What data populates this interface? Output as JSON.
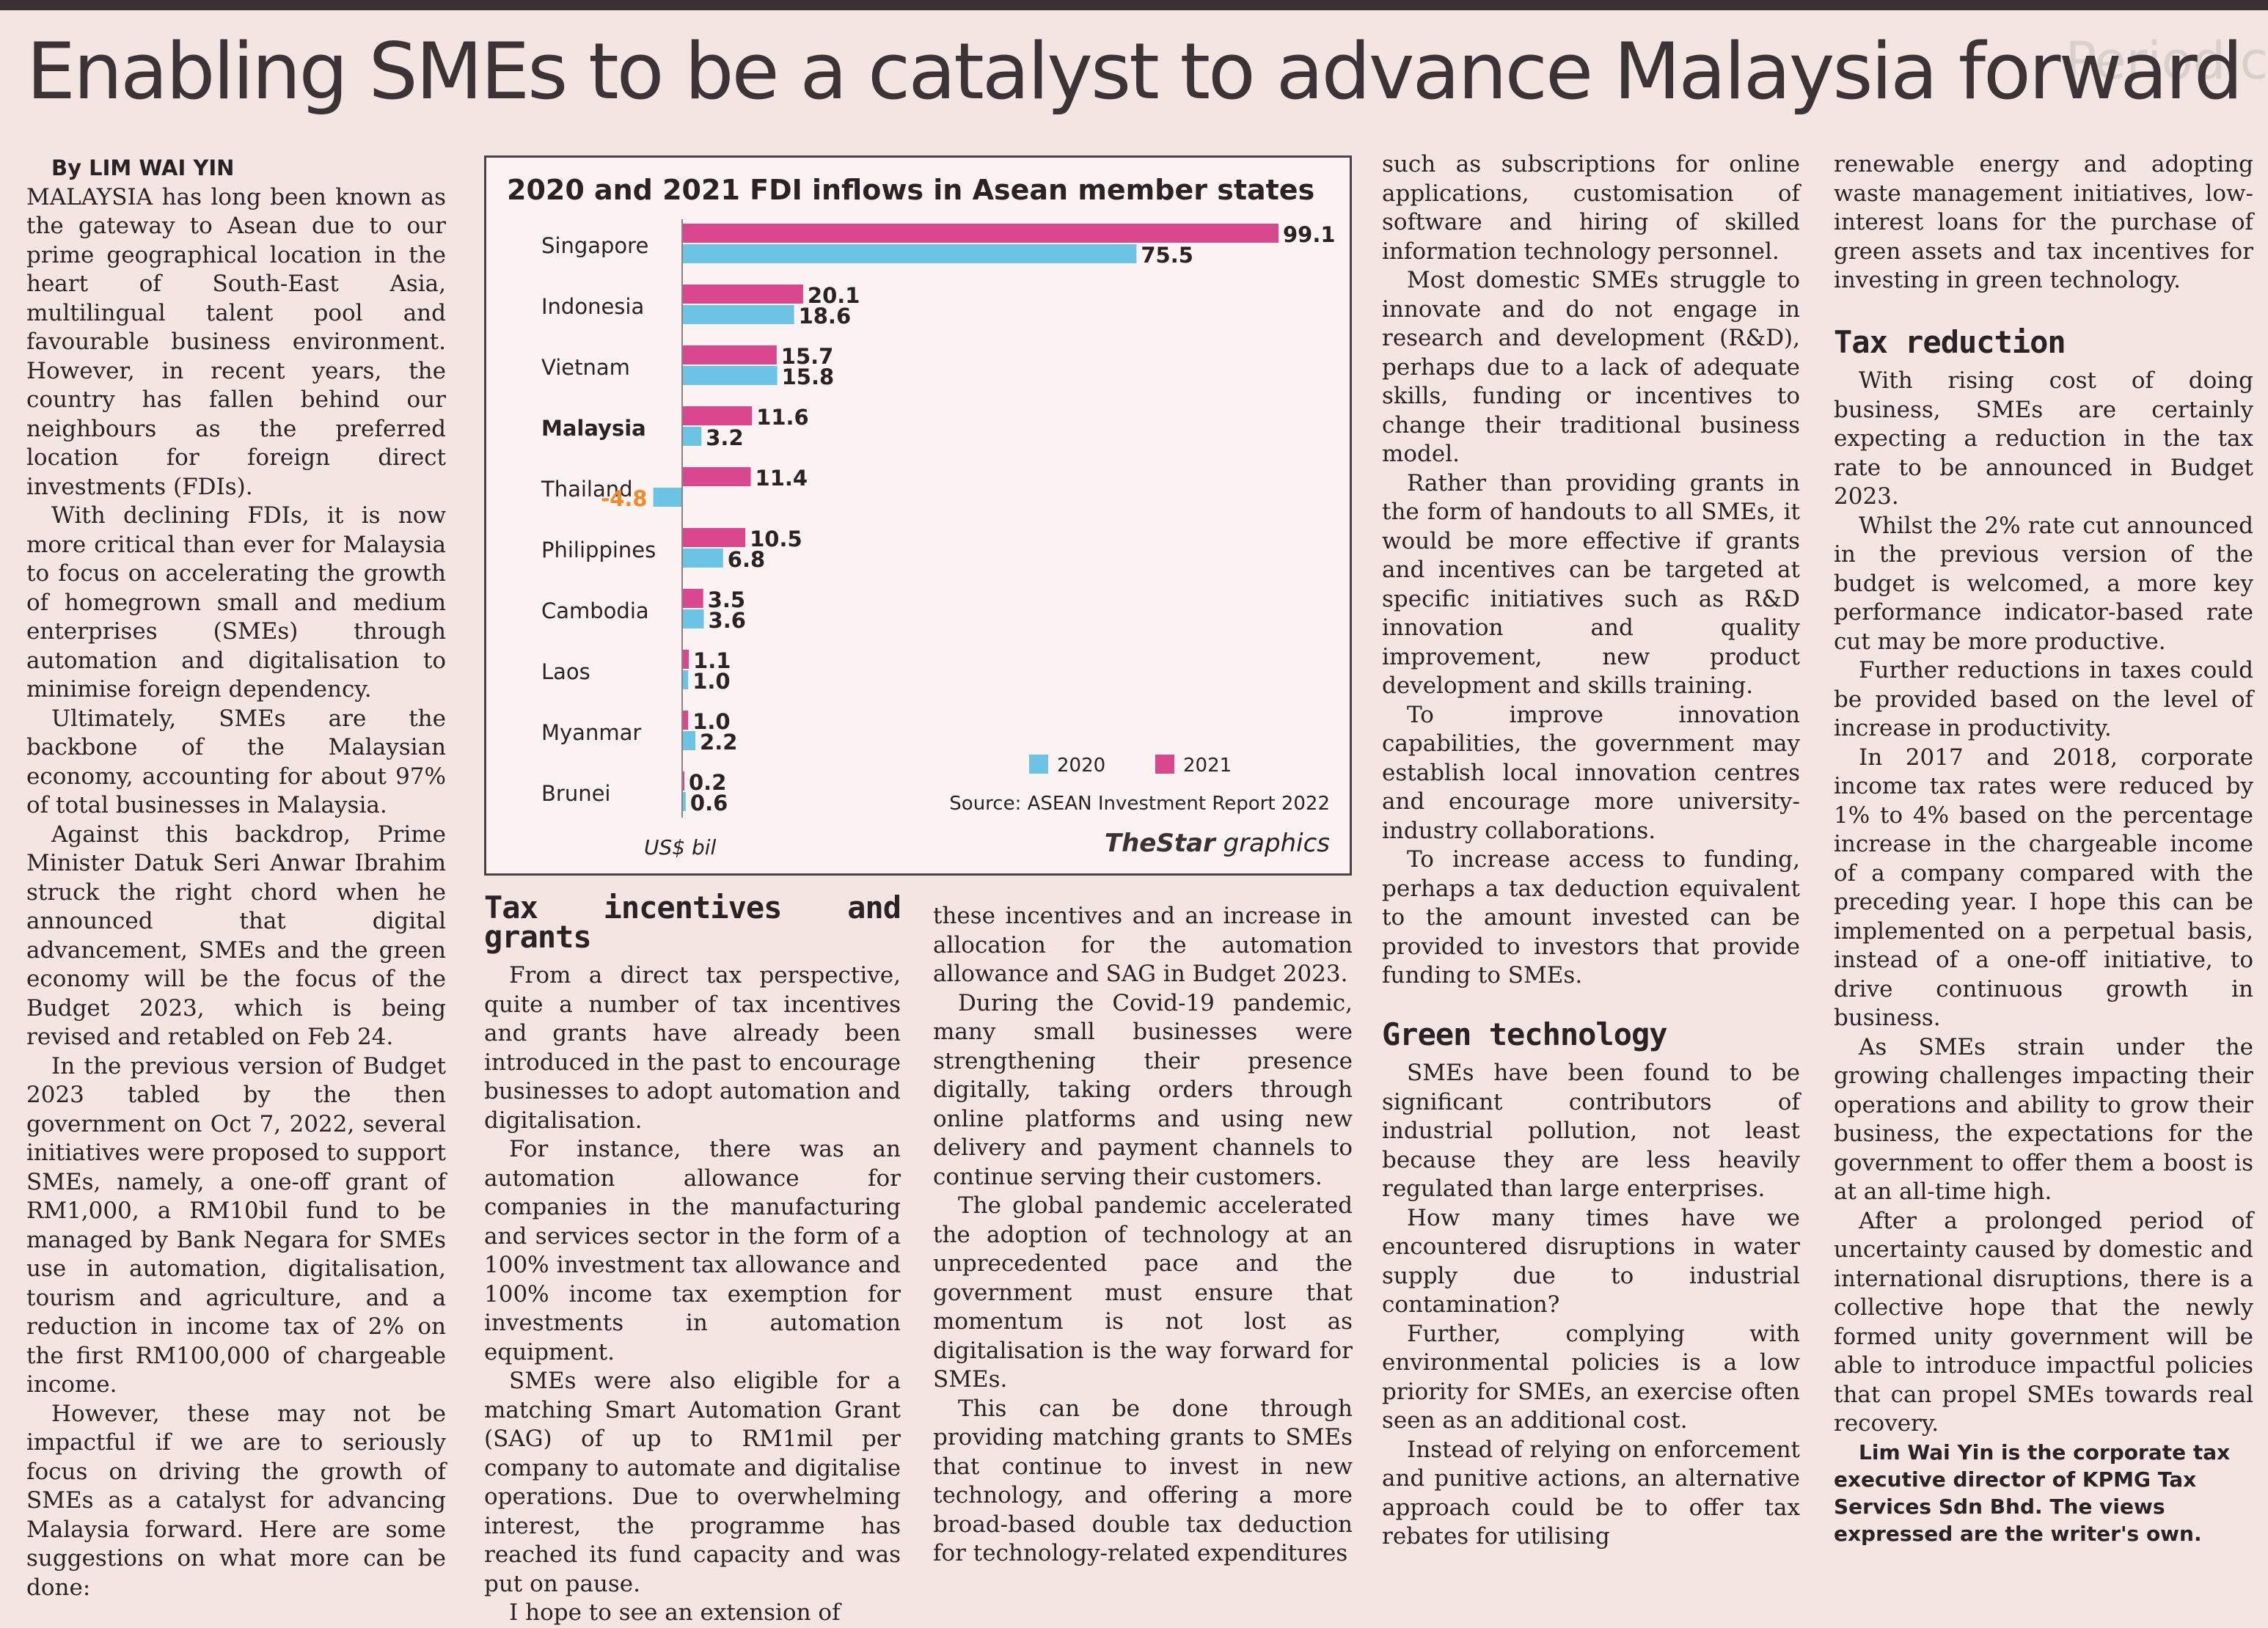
{
  "headline": "Enabling SMEs to be a catalyst to advance Malaysia forward",
  "side_ghost_text": "Periodic",
  "byline": "By LIM WAI YIN",
  "col1": [
    "MALAYSIA has long been known as the gateway to Asean due to our prime geographical location in the heart of South-East Asia, multilingual talent pool and favourable business environment. However, in recent years, the country has fallen behind our neighbours as the preferred location for foreign direct investments (FDIs).",
    "With declining FDIs, it is now more critical than ever for Malaysia to focus on accelerating the growth of homegrown small and medium enterprises (SMEs) through automation and digitalisation to minimise foreign dependency.",
    "Ultimately, SMEs are the backbone of the Malaysian economy, accounting for about 97% of total businesses in Malaysia.",
    "Against this backdrop, Prime Minister Datuk Seri Anwar Ibrahim struck the right chord when he announced that digital advancement, SMEs and the green economy will be the focus of the Budget 2023, which is being revised and retabled on Feb 24.",
    "In the previous version of Budget 2023 tabled by the then government on Oct 7, 2022, several initiatives were proposed to support SMEs, namely, a one-off grant of RM1,000, a RM10bil fund to be managed by Bank Negara for SMEs use in automation, digitalisation, tourism and agriculture, and a reduction in income tax of 2% on the first RM100,000 of chargeable income.",
    "However, these may not be impactful if we are to seriously focus on driving the growth of SMEs as a catalyst for advancing Malaysia forward. Here are some suggestions on what more can be done:"
  ],
  "col2": {
    "subhead": "Tax incentives and grants",
    "paragraphs": [
      "From a direct tax perspective, quite a number of tax incentives and grants have already been introduced in the past to encourage businesses to adopt automation and digitalisation.",
      "For instance, there was an automation allowance for companies in the manufacturing and services sector in the form of a 100% investment tax allowance and 100% income tax exemption for investments in automation equipment.",
      "SMEs were also eligible for a matching Smart Automation Grant (SAG) of up to RM1mil per company to automate and digitalise operations. Due to overwhelming interest, the programme has reached its fund capacity and was put on pause.",
      "I hope to see an extension of"
    ]
  },
  "col3": [
    "these incentives and an increase in allocation for the automation allowance and SAG in Budget 2023.",
    "During the Covid-19 pandemic, many small businesses were strengthening their presence digitally, taking orders through online platforms and using new delivery and payment channels to continue serving their customers.",
    "The global pandemic accelerated the adoption of technology at an unprecedented pace and the government must ensure that momentum is not lost as digitalisation is the way forward for SMEs.",
    "This can be done through providing matching grants to SMEs that continue to invest in new technology, and offering a more broad-based double tax deduction for technology-related expenditures"
  ],
  "col4": {
    "paragraphs_top": [
      "such as subscriptions for online applications, customisation of software and hiring of skilled information technology personnel.",
      "Most domestic SMEs struggle to innovate and do not engage in research and development (R&D), perhaps due to a lack of adequate skills, funding or incentives to change their traditional business model.",
      "Rather than providing grants in the form of handouts to all SMEs, it would be more effective if grants and incentives can be targeted at specific initiatives such as R&D innovation and quality improvement, new product development and skills training.",
      "To improve innovation capabilities, the government may establish local innovation centres and encourage more university-industry collaborations.",
      "To increase access to funding, perhaps a tax deduction equivalent to the amount invested can be provided to investors that provide funding to SMEs."
    ],
    "subhead": "Green technology",
    "paragraphs_bottom": [
      "SMEs have been found to be significant contributors of industrial pollution, not least because they are less heavily regulated than large enterprises.",
      "How many times have we encountered disruptions in water supply due to industrial contamination?",
      "Further, complying with environmental policies is a low priority for SMEs, an exercise often seen as an additional cost.",
      "Instead of relying on enforcement and punitive actions, an alternative approach could be to offer tax rebates for utilising"
    ]
  },
  "col5": {
    "paragraphs_top": [
      "renewable energy and adopting waste management initiatives, low-interest loans for the purchase of green assets and tax incentives for investing in green technology."
    ],
    "subhead": "Tax reduction",
    "paragraphs_bottom": [
      "With rising cost of doing business, SMEs are certainly expecting a reduction in the tax rate to be announced in Budget 2023.",
      "Whilst the 2% rate cut announced in the previous version of the budget is welcomed, a more key performance indicator-based rate cut may be more productive.",
      "Further reductions in taxes could be provided based on the level of increase in productivity.",
      "In 2017 and 2018, corporate income tax rates were reduced by 1% to 4% based on the percentage increase in the chargeable income of a company compared with the preceding year. I hope this can be implemented on a perpetual basis, instead of a one-off initiative, to drive continuous growth in business.",
      "As SMEs strain under the growing challenges impacting their operations and ability to grow their business, the expectations for the government to offer them a boost is at an all-time high.",
      "After a prolonged period of uncertainty caused by domestic and international disruptions, there is a collective hope that the newly formed unity government will be able to introduce impactful policies that can propel SMEs towards real recovery."
    ],
    "author_note": "Lim Wai Yin is the corporate tax executive director of KPMG Tax Services Sdn Bhd. The views expressed are the writer's own."
  },
  "chart_data": {
    "type": "bar",
    "orientation": "horizontal",
    "title": "2020 and 2021 FDI inflows in Asean member states",
    "categories": [
      "Singapore",
      "Indonesia",
      "Vietnam",
      "Malaysia",
      "Thailand",
      "Philippines",
      "Cambodia",
      "Laos",
      "Myanmar",
      "Brunei"
    ],
    "highlight_category": "Malaysia",
    "series": [
      {
        "name": "2021",
        "color": "#d9488f",
        "values": [
          99.1,
          20.1,
          15.7,
          11.6,
          11.4,
          10.5,
          3.5,
          1.1,
          1.0,
          0.2
        ]
      },
      {
        "name": "2020",
        "color": "#6cc3e3",
        "values": [
          75.5,
          18.6,
          15.8,
          3.2,
          -4.8,
          6.8,
          3.6,
          1.0,
          2.2,
          0.6
        ]
      }
    ],
    "value_labels": {
      "2021": [
        "99.1",
        "20.1",
        "15.7",
        "11.6",
        "11.4",
        "10.5",
        "3.5",
        "1.1",
        "1.0",
        "0.2"
      ],
      "2020": [
        "75.5",
        "18.6",
        "15.8",
        "3.2",
        "-4.8",
        "6.8",
        "3.6",
        "1.0",
        "2.2",
        "0.6"
      ]
    },
    "unit_label": "US$ bil",
    "legend": [
      "2020",
      "2021"
    ],
    "legend_position": "bottom-right",
    "source": "Source: ASEAN Investment Report 2022",
    "credit_brand": "TheStar",
    "credit_suffix": "graphics",
    "negative_label_color": "#f08a2c",
    "xlim": [
      -4.8,
      99.1
    ]
  }
}
